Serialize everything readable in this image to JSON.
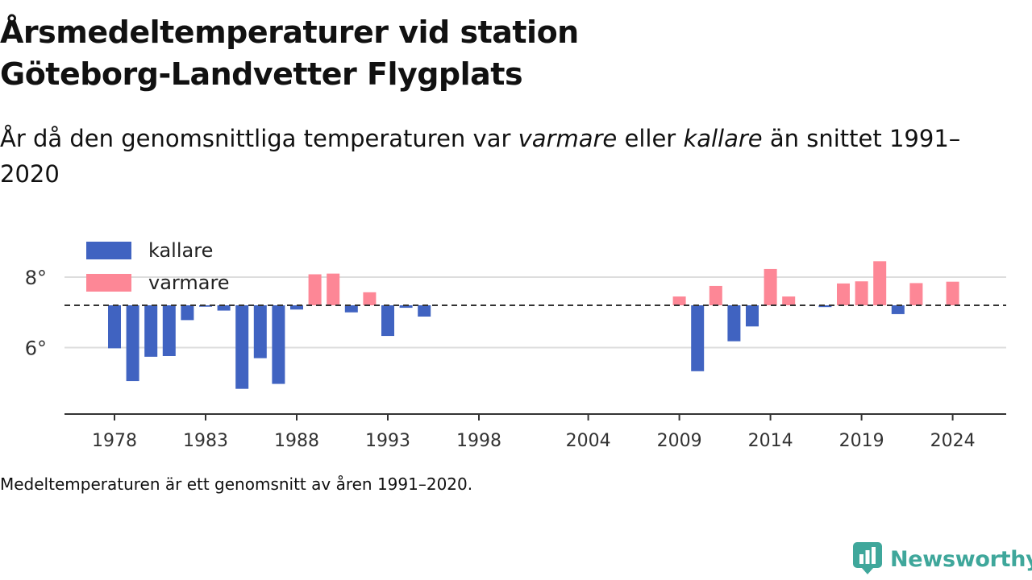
{
  "title_line1": "Årsmedeltemperaturer vid station",
  "title_line2": "Göteborg-Landvetter Flygplats",
  "subtitle": {
    "part1": "År då den genomsnittliga temperaturen var ",
    "em1": "varmare",
    "part2": " eller ",
    "em2": "kallare",
    "part3": " än snittet 1991–2020"
  },
  "caption": "Medeltemperaturen är ett genomsnitt av åren 1991–2020.",
  "brand": {
    "name": "Newsworthy",
    "color": "#3fa79b"
  },
  "colors": {
    "kallare": "#4063c1",
    "varmare": "#fd8796",
    "baseline": "#333333",
    "grid": "#dddddd",
    "axis": "#333333"
  },
  "chart_data": {
    "type": "bar",
    "title": "Årsmedeltemperaturer vid station Göteborg-Landvetter Flygplats",
    "xlabel": "",
    "ylabel": "",
    "baseline": 7.2,
    "baseline_style": "dashed",
    "ylim": [
      4.6,
      9.0
    ],
    "yticks": [
      6,
      8
    ],
    "ytick_labels": [
      "6°",
      "8°"
    ],
    "xticks": [
      1978,
      1983,
      1988,
      1993,
      1998,
      2004,
      2009,
      2014,
      2019,
      2024
    ],
    "xtick_labels": [
      "1978",
      "1983",
      "1988",
      "1993",
      "1998",
      "2004",
      "2009",
      "2014",
      "2019",
      "2024"
    ],
    "legend": {
      "position": "top-left",
      "entries": [
        {
          "name": "kallare",
          "color": "#4063c1"
        },
        {
          "name": "varmare",
          "color": "#fd8796"
        }
      ]
    },
    "grid": "horizontal",
    "series": [
      {
        "name": "kallare",
        "x": [
          1978,
          1979,
          1980,
          1981,
          1982,
          1983,
          1984,
          1985,
          1986,
          1987,
          1988,
          1991,
          1993,
          1994,
          1995,
          2010,
          2012,
          2013,
          2017,
          2021
        ],
        "values": [
          5.98,
          5.05,
          5.74,
          5.76,
          6.78,
          7.16,
          7.05,
          4.83,
          5.7,
          4.97,
          7.08,
          7.0,
          6.33,
          7.13,
          6.88,
          5.33,
          6.18,
          6.6,
          7.15,
          6.95
        ]
      },
      {
        "name": "varmare",
        "x": [
          1989,
          1990,
          1992,
          2009,
          2011,
          2014,
          2015,
          2018,
          2019,
          2020,
          2022,
          2024
        ],
        "values": [
          8.08,
          8.1,
          7.57,
          7.45,
          7.75,
          8.23,
          7.45,
          7.82,
          7.88,
          8.45,
          7.83,
          7.87
        ]
      }
    ]
  }
}
